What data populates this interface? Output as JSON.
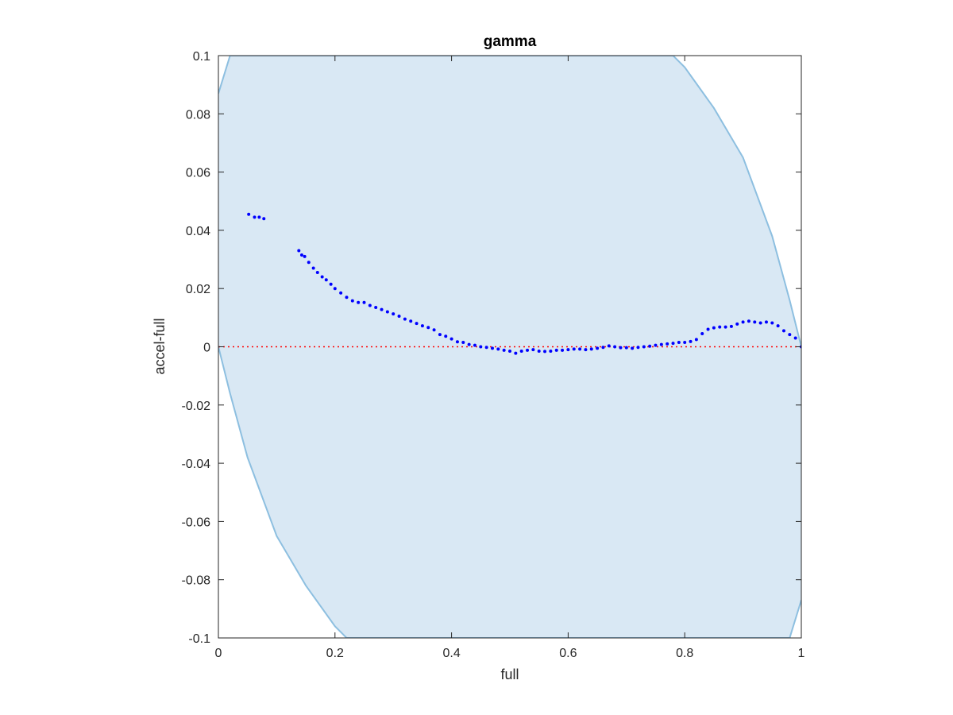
{
  "chart_data": {
    "type": "scatter",
    "title": "gamma",
    "xlabel": "full",
    "ylabel": "accel-full",
    "xlim": [
      0,
      1
    ],
    "ylim": [
      -0.1,
      0.1
    ],
    "xticks": [
      "0",
      "0.2",
      "0.4",
      "0.6",
      "0.8",
      "1"
    ],
    "xtick_values": [
      0,
      0.2,
      0.4,
      0.6,
      0.8,
      1
    ],
    "yticks": [
      "-0.1",
      "-0.08",
      "-0.06",
      "-0.04",
      "-0.02",
      "0",
      "0.02",
      "0.04",
      "0.06",
      "0.08",
      "0.1"
    ],
    "ytick_values": [
      -0.1,
      -0.08,
      -0.06,
      -0.04,
      -0.02,
      0,
      0.02,
      0.04,
      0.06,
      0.08,
      0.1
    ],
    "grid": false,
    "reference_line": {
      "y": 0,
      "style": "dotted",
      "color": "#ff0000"
    },
    "band": {
      "color_fill": "#d9e8f4",
      "color_edge": "#8dbfe0",
      "upper": [
        [
          0,
          0.087
        ],
        [
          0.02,
          0.1
        ],
        [
          0.78,
          0.1
        ],
        [
          0.8,
          0.096
        ],
        [
          0.85,
          0.082
        ],
        [
          0.9,
          0.065
        ],
        [
          0.95,
          0.038
        ],
        [
          0.98,
          0.016
        ],
        [
          1,
          0
        ]
      ],
      "lower": [
        [
          0,
          0
        ],
        [
          0.02,
          -0.016
        ],
        [
          0.05,
          -0.038
        ],
        [
          0.1,
          -0.065
        ],
        [
          0.15,
          -0.082
        ],
        [
          0.2,
          -0.096
        ],
        [
          0.22,
          -0.1
        ],
        [
          0.98,
          -0.1
        ],
        [
          1,
          -0.087
        ]
      ]
    },
    "series": [
      {
        "color": "#0000ff",
        "x": [
          0.052,
          0.062,
          0.07,
          0.078,
          0.138,
          0.143,
          0.148,
          0.155,
          0.163,
          0.17,
          0.178,
          0.185,
          0.193,
          0.2,
          0.21,
          0.22,
          0.23,
          0.24,
          0.25,
          0.26,
          0.27,
          0.28,
          0.29,
          0.3,
          0.31,
          0.32,
          0.33,
          0.34,
          0.35,
          0.36,
          0.37,
          0.38,
          0.39,
          0.4,
          0.41,
          0.42,
          0.43,
          0.44,
          0.45,
          0.46,
          0.47,
          0.48,
          0.49,
          0.5,
          0.51,
          0.52,
          0.53,
          0.54,
          0.55,
          0.56,
          0.57,
          0.58,
          0.59,
          0.6,
          0.61,
          0.62,
          0.63,
          0.64,
          0.65,
          0.66,
          0.67,
          0.68,
          0.69,
          0.7,
          0.71,
          0.72,
          0.73,
          0.74,
          0.75,
          0.76,
          0.77,
          0.78,
          0.79,
          0.8,
          0.81,
          0.82,
          0.83,
          0.84,
          0.85,
          0.86,
          0.87,
          0.88,
          0.89,
          0.9,
          0.91,
          0.92,
          0.93,
          0.94,
          0.95,
          0.96,
          0.97,
          0.98,
          0.99,
          1.0
        ],
        "y": [
          0.0455,
          0.0445,
          0.0445,
          0.044,
          0.033,
          0.0315,
          0.031,
          0.029,
          0.027,
          0.0255,
          0.024,
          0.023,
          0.0215,
          0.02,
          0.0185,
          0.017,
          0.0158,
          0.0152,
          0.0152,
          0.0142,
          0.0135,
          0.0128,
          0.012,
          0.0113,
          0.0105,
          0.0095,
          0.0088,
          0.008,
          0.0072,
          0.0066,
          0.0058,
          0.0042,
          0.0036,
          0.0027,
          0.0017,
          0.0015,
          0.0008,
          0.0005,
          0.0,
          -0.0002,
          -0.0005,
          -0.0008,
          -0.0012,
          -0.0015,
          -0.0022,
          -0.0015,
          -0.0012,
          -0.001,
          -0.0015,
          -0.0016,
          -0.0015,
          -0.0012,
          -0.0012,
          -0.001,
          -0.0008,
          -0.0008,
          -0.001,
          -0.0008,
          -0.0005,
          -0.0002,
          0.0003,
          0.0,
          -0.0003,
          -0.0003,
          -0.0005,
          -0.0002,
          0.0,
          0.0002,
          0.0005,
          0.0008,
          0.001,
          0.0012,
          0.0015,
          0.0015,
          0.0018,
          0.0025,
          0.0045,
          0.006,
          0.0065,
          0.0068,
          0.0068,
          0.007,
          0.0078,
          0.0085,
          0.0088,
          0.0085,
          0.0082,
          0.0085,
          0.0082,
          0.0072,
          0.0055,
          0.0042,
          0.003,
          0.0
        ]
      }
    ]
  }
}
